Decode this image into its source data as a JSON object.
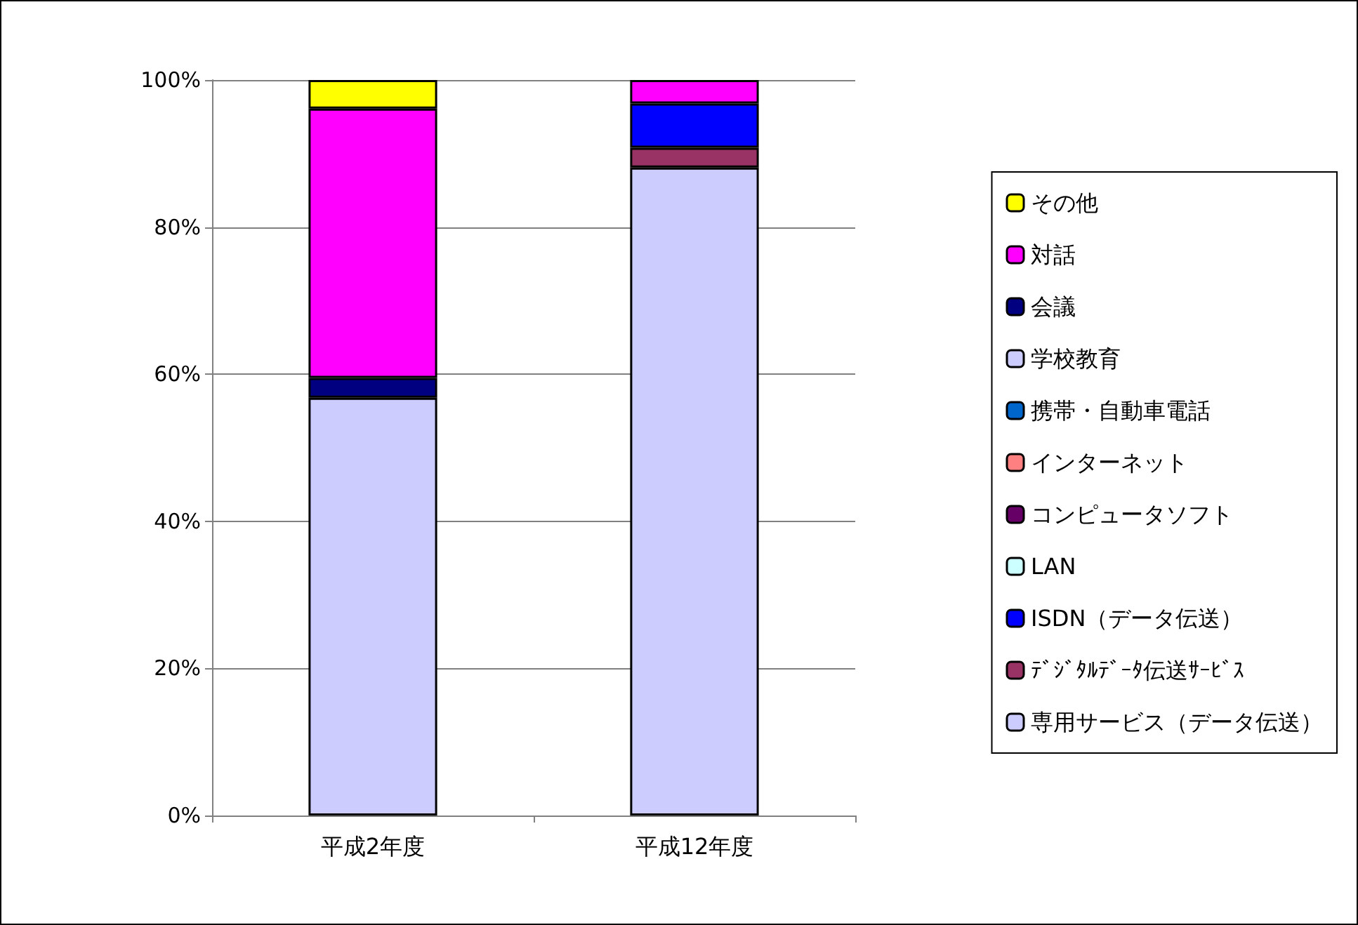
{
  "chart_data": {
    "type": "bar",
    "stacked": true,
    "categories": [
      "平成2年度",
      "平成12年度"
    ],
    "series": [
      {
        "name": "専用サービス（データ伝送）",
        "color": "#ccccff",
        "values": [
          56.8,
          88.1
        ]
      },
      {
        "name": "ﾃﾞｼﾞﾀﾙﾃﾞｰﾀ伝送ｻｰﾋﾞｽ",
        "color": "#993366",
        "values": [
          0,
          2.7
        ]
      },
      {
        "name": "ISDN（データ伝送）",
        "color": "#0000ff",
        "values": [
          0,
          6.0
        ]
      },
      {
        "name": "LAN",
        "color": "#ccffff",
        "values": [
          0,
          0
        ]
      },
      {
        "name": "コンピュータソフト",
        "color": "#660066",
        "values": [
          0,
          0
        ]
      },
      {
        "name": "インターネット",
        "color": "#ff8080",
        "values": [
          0,
          0
        ]
      },
      {
        "name": "携帯・自動車電話",
        "color": "#0066cc",
        "values": [
          0,
          0
        ]
      },
      {
        "name": "学校教育",
        "color": "#ccccff",
        "values": [
          0,
          0
        ]
      },
      {
        "name": "会議",
        "color": "#000080",
        "values": [
          2.7,
          0
        ]
      },
      {
        "name": "対話",
        "color": "#ff00ff",
        "values": [
          36.6,
          3.2
        ]
      },
      {
        "name": "その他",
        "color": "#ffff00",
        "values": [
          3.9,
          0
        ]
      }
    ],
    "ylim": [
      0,
      100
    ],
    "yticks": [
      {
        "value": 0,
        "label": "0%"
      },
      {
        "value": 20,
        "label": "20%"
      },
      {
        "value": 40,
        "label": "40%"
      },
      {
        "value": 60,
        "label": "60%"
      },
      {
        "value": 80,
        "label": "80%"
      },
      {
        "value": 100,
        "label": "100%"
      }
    ],
    "grid": "y",
    "legend": "right"
  }
}
